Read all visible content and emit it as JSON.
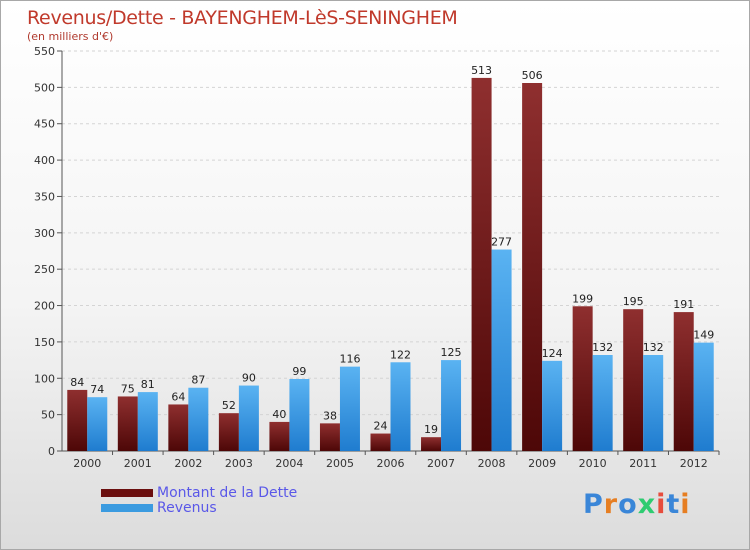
{
  "header": {
    "title": "Revenus/Dette - BAYENGHEM-LèS-SENINGHEM",
    "subtitle": "(en milliers d'€)"
  },
  "chart_data": {
    "type": "bar",
    "categories": [
      "2000",
      "2001",
      "2002",
      "2003",
      "2004",
      "2005",
      "2006",
      "2007",
      "2008",
      "2009",
      "2010",
      "2011",
      "2012"
    ],
    "series": [
      {
        "name": "Montant de la Dette",
        "values": [
          84,
          75,
          64,
          52,
          40,
          38,
          24,
          19,
          513,
          506,
          199,
          195,
          191
        ],
        "color": "#7a1a1a"
      },
      {
        "name": "Revenus",
        "values": [
          74,
          81,
          87,
          90,
          99,
          116,
          122,
          125,
          277,
          124,
          132,
          132,
          149
        ],
        "color": "#3b9be0"
      }
    ],
    "ylim": [
      0,
      550
    ],
    "yticks": [
      0,
      50,
      100,
      150,
      200,
      250,
      300,
      350,
      400,
      450,
      500,
      550
    ],
    "grid": true,
    "legend": "bottom-left"
  },
  "legend": {
    "items": [
      {
        "label": "Montant de la Dette",
        "color": "#6b0f0f"
      },
      {
        "label": "Revenus",
        "color": "#3b9be0"
      }
    ]
  },
  "logo": {
    "text": "Proxiti",
    "colors": [
      "#3a86d8",
      "#e67e22",
      "#3a86d8",
      "#2ecc71",
      "#e74c3c",
      "#3a86d8",
      "#e67e22"
    ]
  }
}
